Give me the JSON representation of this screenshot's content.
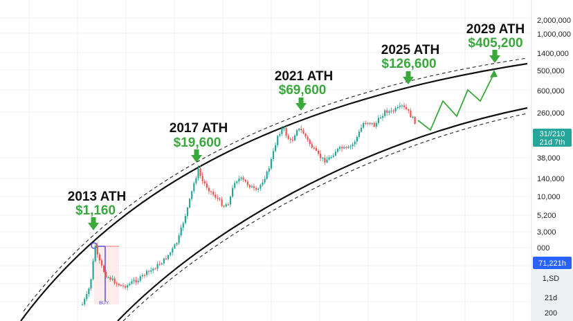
{
  "chart_data": {
    "type": "candlestick",
    "title": "",
    "xlabel": "",
    "ylabel": "",
    "yscale": "log",
    "grid": true,
    "annotations": [
      {
        "label": "2013 ATH",
        "price": "$1,160"
      },
      {
        "label": "2017 ATH",
        "price": "$19,600"
      },
      {
        "label": "2021 ATH",
        "price": "$69,600"
      },
      {
        "label": "2025 ATH",
        "price": "$126,600"
      },
      {
        "label": "2029 ATH",
        "price": "$405,200"
      }
    ],
    "y_tick_labels": [
      "2,000,000",
      "1,000,000",
      "1400,000",
      "500,000",
      "600,000",
      "260,000",
      "38,000",
      "140,000",
      "10,000",
      "5,200",
      "3,000",
      "000",
      "1,SD",
      "21d",
      "200"
    ],
    "price_badges": {
      "current_top": "31//210",
      "current_bottom": "21d 7th",
      "cursor": "71,221h"
    },
    "marker_label": "BUY",
    "colors": {
      "up": "#26a69a",
      "down": "#ef5350",
      "arrow": "#3aa83a",
      "badge_teal": "#26a69a",
      "badge_blue": "#2962ff",
      "marker": "#5b5bd6"
    }
  }
}
